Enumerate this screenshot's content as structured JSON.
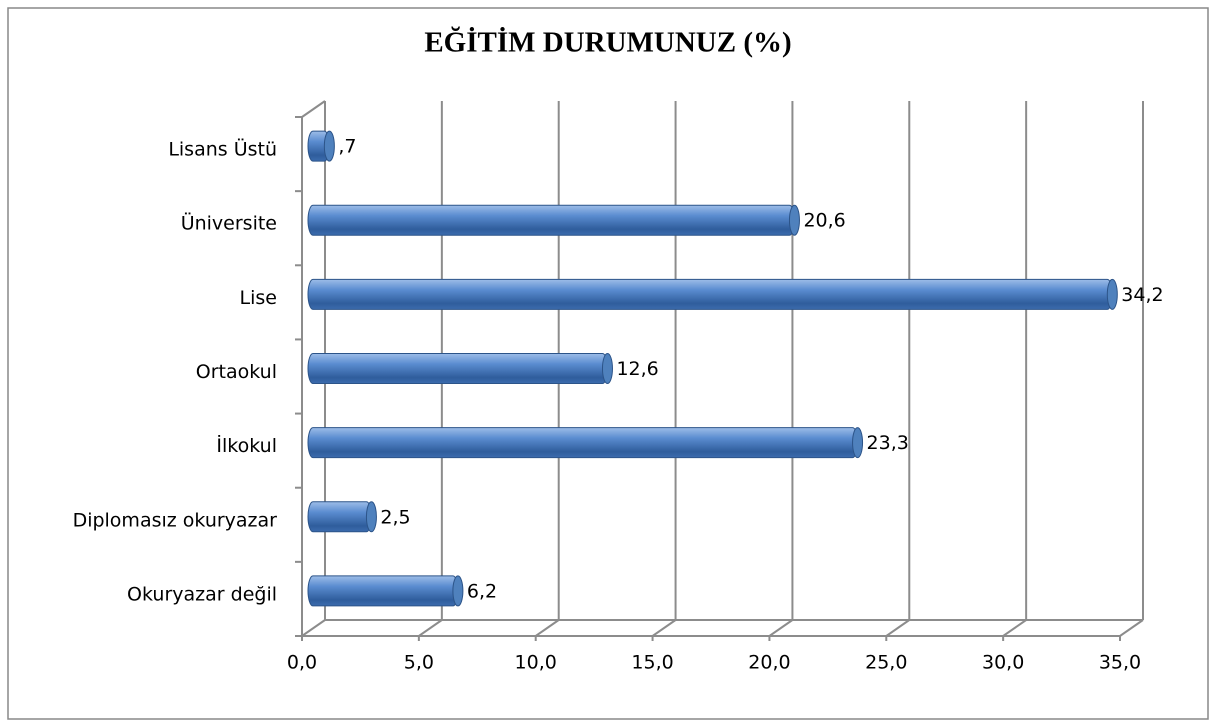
{
  "chart_data": {
    "type": "bar",
    "orientation": "horizontal",
    "title": "EĞİTİM DURUMUNUZ (%)",
    "categories": [
      "Okuryazar değil",
      "Diplomasız okuryazar",
      "İlkokul",
      "Ortaokul",
      "Lise",
      "Üniversite",
      "Lisans Üstü"
    ],
    "values": [
      6.2,
      2.5,
      23.3,
      12.6,
      34.2,
      20.6,
      0.7
    ],
    "value_labels": [
      "6,2",
      "2,5",
      "23,3",
      "12,6",
      "34,2",
      "20,6",
      ",7"
    ],
    "color": "#4f81bd",
    "xlim": [
      0,
      35
    ],
    "xticks": [
      {
        "value": 0,
        "label": "0,0"
      },
      {
        "value": 5,
        "label": "5,0"
      },
      {
        "value": 10,
        "label": "10,0"
      },
      {
        "value": 15,
        "label": "15,0"
      },
      {
        "value": 20,
        "label": "20,0"
      },
      {
        "value": 25,
        "label": "25,0"
      },
      {
        "value": 30,
        "label": "30,0"
      },
      {
        "value": 35,
        "label": "35,0"
      }
    ],
    "grid": true
  }
}
